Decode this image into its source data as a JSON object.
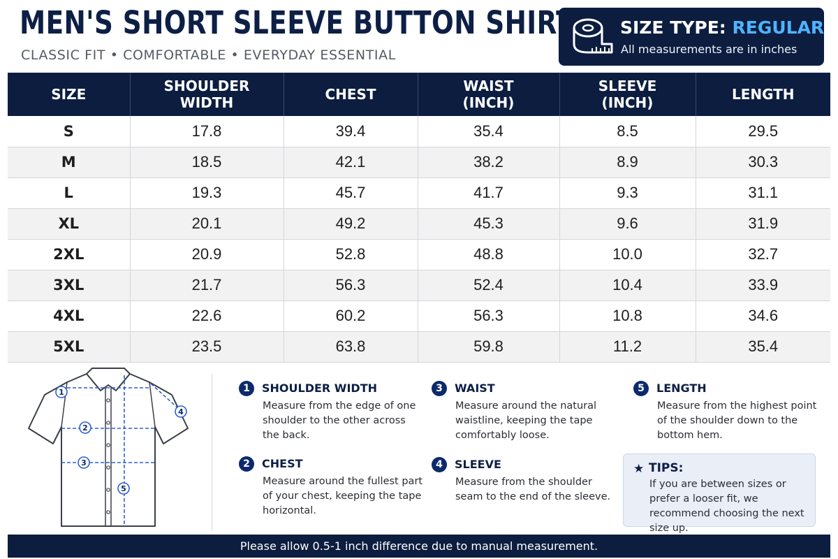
{
  "header": {
    "title": "MEN'S SHORT SLEEVE BUTTON SHIRT",
    "subtitle": "CLASSIC FIT • COMFORTABLE • EVERYDAY ESSENTIAL"
  },
  "size_type": {
    "label": "SIZE TYPE:",
    "value": "REGULAR",
    "note": "All measurements are in inches",
    "icon": "measuring-tape-icon"
  },
  "table": {
    "columns": [
      {
        "line1": "SIZE",
        "line2": ""
      },
      {
        "line1": "SHOULDER",
        "line2": "WIDTH"
      },
      {
        "line1": "CHEST",
        "line2": ""
      },
      {
        "line1": "WAIST",
        "line2": "(INCH)"
      },
      {
        "line1": "SLEEVE",
        "line2": "(INCH)"
      },
      {
        "line1": "LENGTH",
        "line2": ""
      }
    ],
    "rows": [
      [
        "S",
        "17.8",
        "39.4",
        "35.4",
        "8.5",
        "29.5"
      ],
      [
        "M",
        "18.5",
        "42.1",
        "38.2",
        "8.9",
        "30.3"
      ],
      [
        "L",
        "19.3",
        "45.7",
        "41.7",
        "9.3",
        "31.1"
      ],
      [
        "XL",
        "20.1",
        "49.2",
        "45.3",
        "9.6",
        "31.9"
      ],
      [
        "2XL",
        "20.9",
        "52.8",
        "48.8",
        "10.0",
        "32.7"
      ],
      [
        "3XL",
        "21.7",
        "56.3",
        "52.4",
        "10.4",
        "33.9"
      ],
      [
        "4XL",
        "22.6",
        "60.2",
        "56.3",
        "10.8",
        "34.6"
      ],
      [
        "5XL",
        "23.5",
        "63.8",
        "59.8",
        "11.2",
        "35.4"
      ]
    ]
  },
  "diagram": {
    "markers": [
      "1",
      "2",
      "3",
      "4",
      "5"
    ]
  },
  "guides": [
    {
      "num": "1",
      "title": "SHOULDER WIDTH",
      "desc": "Measure from the edge of one shoulder to the other across the back."
    },
    {
      "num": "2",
      "title": "CHEST",
      "desc": "Measure around the fullest part of your chest, keeping the tape horizontal."
    },
    {
      "num": "3",
      "title": "WAIST",
      "desc": "Measure around the natural waistline, keeping the tape comfortably loose."
    },
    {
      "num": "4",
      "title": "SLEEVE",
      "desc": "Measure from the shoulder seam to the end of the sleeve."
    },
    {
      "num": "5",
      "title": "LENGTH",
      "desc": "Measure from the highest point of the shoulder down to the bottom hem."
    }
  ],
  "tips": {
    "icon": "star-icon",
    "title": "TIPS:",
    "text": "If you are between sizes or prefer a looser fit, we recommend choosing the next size up."
  },
  "footer": {
    "note": "Please allow 0.5-1 inch difference due to manual measurement."
  },
  "colors": {
    "navy": "#0c1d40",
    "accent": "#4fb3ff",
    "measure_line": "#2d5fd1"
  }
}
